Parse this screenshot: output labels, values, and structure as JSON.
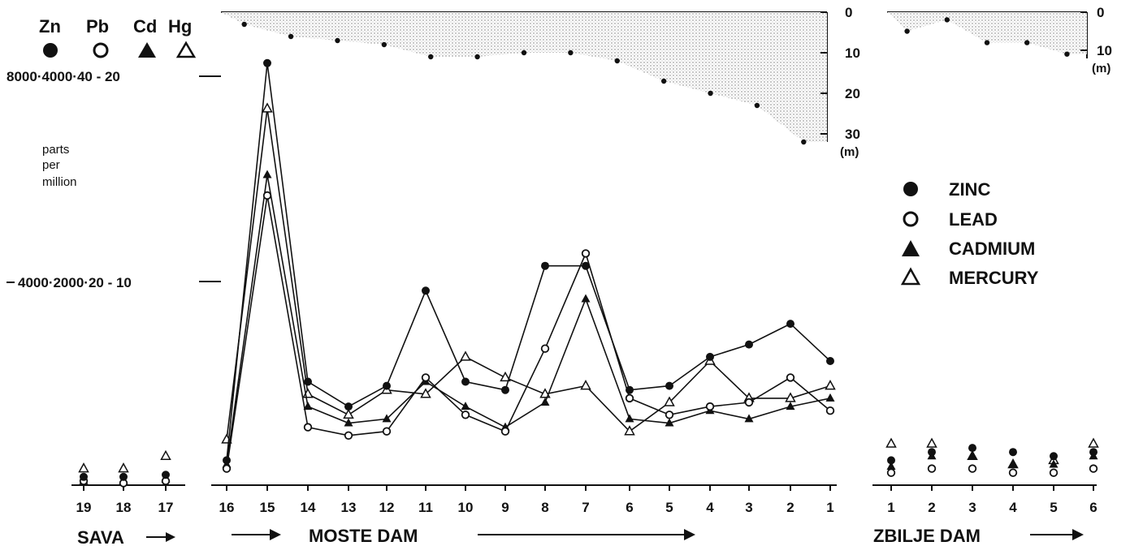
{
  "chart_data": {
    "type": "line",
    "scale_header": {
      "symbols": [
        "Zn",
        "Pb",
        "Cd",
        "Hg"
      ],
      "top_scale": "8000·4000·40 - 20",
      "mid_scale": "4000·2000·20 - 10",
      "y_unit": [
        "parts",
        "per",
        "million"
      ]
    },
    "legend": [
      {
        "key": "zinc",
        "label": "ZINC",
        "marker": "filled-circle"
      },
      {
        "key": "lead",
        "label": "LEAD",
        "marker": "open-circle"
      },
      {
        "key": "cadmium",
        "label": "CADMIUM",
        "marker": "filled-triangle"
      },
      {
        "key": "mercury",
        "label": "MERCURY",
        "marker": "open-triangle"
      }
    ],
    "ylim_relative": [
      0,
      1
    ],
    "sites": {
      "sava": {
        "label": "SAVA",
        "x": [
          "19",
          "18",
          "17"
        ]
      },
      "moste": {
        "label": "MOSTE DAM",
        "x": [
          "16",
          "15",
          "14",
          "13",
          "12",
          "11",
          "10",
          "9",
          "8",
          "7",
          "6",
          "5",
          "4",
          "3",
          "2",
          "1"
        ]
      },
      "zbilje": {
        "label": "ZBILJE DAM",
        "x": [
          "1",
          "2",
          "3",
          "4",
          "5",
          "6"
        ]
      }
    },
    "series": {
      "zinc": {
        "sava": [
          0.02,
          0.02,
          0.025
        ],
        "moste": [
          0.06,
          1.02,
          0.25,
          0.19,
          0.24,
          0.47,
          0.25,
          0.23,
          0.53,
          0.53,
          0.23,
          0.24,
          0.31,
          0.34,
          0.39,
          0.3
        ],
        "zbilje": [
          0.06,
          0.08,
          0.09,
          0.08,
          0.07,
          0.08
        ]
      },
      "lead": {
        "sava": [
          0.01,
          0.005,
          0.01
        ],
        "moste": [
          0.04,
          0.7,
          0.14,
          0.12,
          0.13,
          0.26,
          0.17,
          0.13,
          0.33,
          0.56,
          0.21,
          0.17,
          0.19,
          0.2,
          0.26,
          0.18
        ],
        "zbilje": [
          0.03,
          0.04,
          0.04,
          0.03,
          0.03,
          0.04
        ]
      },
      "cadmium": {
        "sava": [
          0.01,
          0.01,
          0.015
        ],
        "moste": [
          0.05,
          0.75,
          0.19,
          0.15,
          0.16,
          0.25,
          0.19,
          0.14,
          0.2,
          0.45,
          0.16,
          0.15,
          0.18,
          0.16,
          0.19,
          0.21
        ],
        "zbilje": [
          0.045,
          0.07,
          0.07,
          0.05,
          0.05,
          0.07
        ]
      },
      "mercury": {
        "sava": [
          0.04,
          0.04,
          0.07
        ],
        "moste": [
          0.11,
          0.91,
          0.22,
          0.17,
          0.23,
          0.22,
          0.31,
          0.26,
          0.22,
          0.24,
          0.13,
          0.2,
          0.3,
          0.21,
          0.21,
          0.24
        ],
        "zbilje": [
          0.1,
          0.1,
          0.07,
          0.05,
          0.06,
          0.1
        ]
      }
    },
    "depth_profiles": {
      "moste": {
        "labels": [
          "0",
          "10",
          "20",
          "30",
          "(m)"
        ],
        "max": 30,
        "depths": [
          3,
          6,
          7,
          8,
          11,
          11,
          10,
          10,
          12,
          17,
          20,
          23,
          32
        ]
      },
      "zbilje": {
        "labels": [
          "0",
          "10",
          "(m)"
        ],
        "max": 10,
        "depths": [
          5,
          2,
          8,
          8,
          11
        ]
      }
    }
  }
}
